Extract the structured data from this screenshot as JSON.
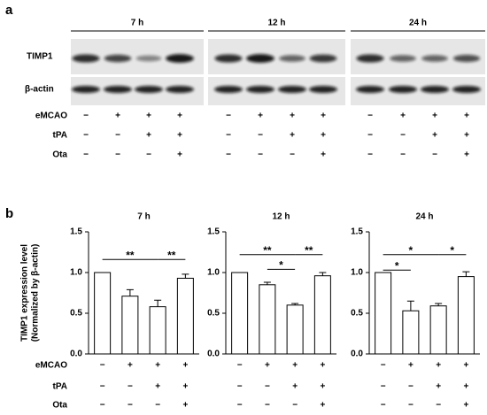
{
  "panels": {
    "a": "a",
    "b": "b"
  },
  "blot": {
    "times": [
      "7 h",
      "12 h",
      "24 h"
    ],
    "rows": [
      "TIMP1",
      "β-actin"
    ]
  },
  "conditions": [
    {
      "name": "eMCAO",
      "signs": [
        "−",
        "+",
        "+",
        "+"
      ]
    },
    {
      "name": "tPA",
      "signs": [
        "−",
        "−",
        "+",
        "+"
      ]
    },
    {
      "name": "Ota",
      "signs": [
        "−",
        "−",
        "−",
        "+"
      ]
    }
  ],
  "chart_data": [
    {
      "type": "bar",
      "title": "7 h",
      "ylabel": [
        "TIMP1 expression level",
        "(Normalized by β-actin)"
      ],
      "values": [
        1.0,
        0.71,
        0.58,
        0.93
      ],
      "errors": [
        0,
        0.08,
        0.08,
        0.05
      ],
      "color": "#ffffff",
      "ylim": [
        0,
        1.5
      ],
      "yticks": [
        {
          "value": 0,
          "label": "0.0"
        },
        {
          "value": 0.5,
          "label": "0.5"
        },
        {
          "value": 1,
          "label": "1.0"
        },
        {
          "value": 1.5,
          "label": "1.5"
        }
      ],
      "annotations": [
        "**",
        "**"
      ]
    },
    {
      "type": "bar",
      "title": "12 h",
      "values": [
        1.0,
        0.85,
        0.6,
        0.96
      ],
      "errors": [
        0,
        0.03,
        0.02,
        0.04
      ],
      "color": "#ffffff",
      "ylim": [
        0,
        1.5
      ],
      "yticks": [
        {
          "value": 0,
          "label": "0.0"
        },
        {
          "value": 0.5,
          "label": "0.5"
        },
        {
          "value": 1,
          "label": "1.0"
        },
        {
          "value": 1.5,
          "label": "1.5"
        }
      ],
      "annotations": [
        "**",
        "*",
        "**"
      ]
    },
    {
      "type": "bar",
      "title": "24 h",
      "values": [
        1.0,
        0.53,
        0.59,
        0.95
      ],
      "errors": [
        0,
        0.12,
        0.03,
        0.06
      ],
      "color": "#ffffff",
      "ylim": [
        0,
        1.5
      ],
      "yticks": [
        {
          "value": 0,
          "label": "0.0"
        },
        {
          "value": 0.5,
          "label": "0.5"
        },
        {
          "value": 1,
          "label": "1.0"
        },
        {
          "value": 1.5,
          "label": "1.5"
        }
      ],
      "annotations": [
        "*",
        "*",
        "*"
      ]
    }
  ]
}
